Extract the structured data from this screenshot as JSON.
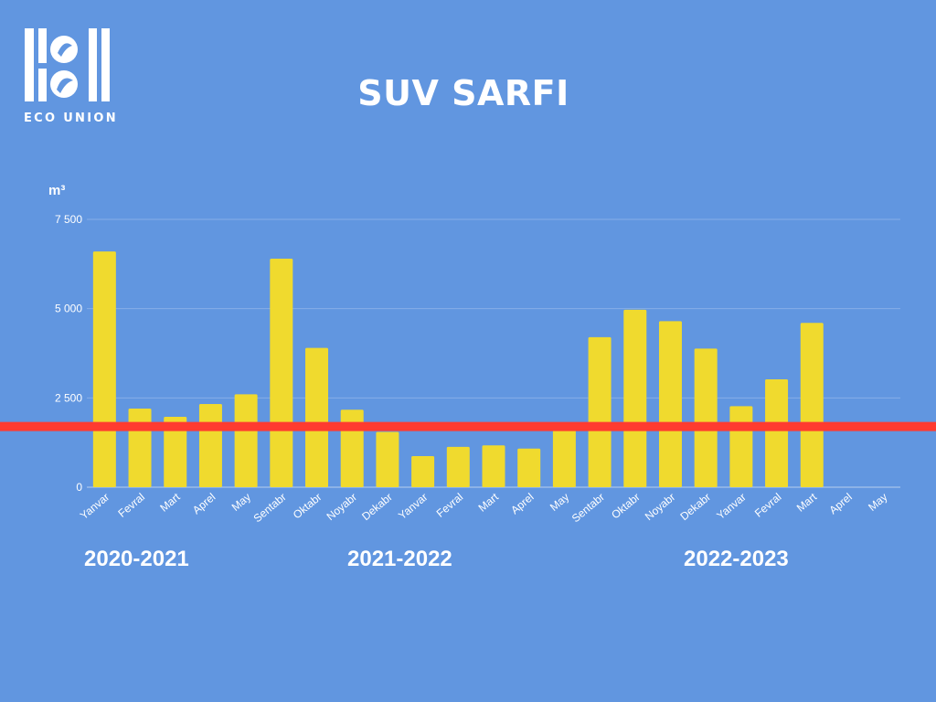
{
  "logo": {
    "text": "ECO UNION",
    "icon": "eco-union-logo-icon"
  },
  "title": "SUV SARFI",
  "chart_data": {
    "type": "bar",
    "title": "SUV SARFI",
    "ylabel": "m³",
    "ylim": [
      0,
      7500
    ],
    "yticks": [
      0,
      2500,
      5000,
      7500
    ],
    "ytick_labels": [
      "0",
      "2 500",
      "5 000",
      "7 500"
    ],
    "grid": true,
    "categories": [
      "Yanvar",
      "Fevral",
      "Mart",
      "Aprel",
      "May",
      "Sentabr",
      "Oktabr",
      "Noyabr",
      "Dekabr",
      "Yanvar",
      "Fevral",
      "Mart",
      "Aprel",
      "May",
      "Sentabr",
      "Oktabr",
      "Noyabr",
      "Dekabr",
      "Yanvar",
      "Fevral",
      "Mart",
      "Aprel",
      "May"
    ],
    "values": [
      6600,
      2200,
      1970,
      2330,
      2600,
      6400,
      3900,
      2170,
      1550,
      870,
      1130,
      1170,
      1080,
      1660,
      4200,
      4970,
      4650,
      3880,
      2270,
      3020,
      4600,
      null,
      null
    ],
    "reference_line": {
      "value": 1700,
      "color": "#ff3b30"
    },
    "bar_color": "#f0da2e",
    "group_labels": [
      "2020-2021",
      "2021-2022",
      "2022-2023"
    ]
  }
}
